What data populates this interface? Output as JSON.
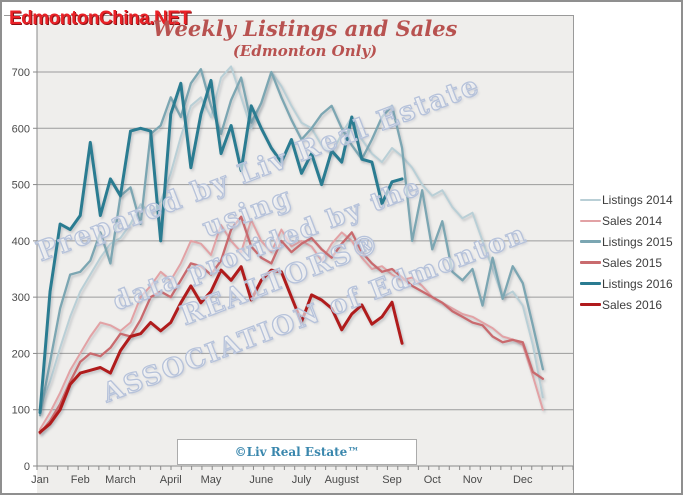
{
  "logo": {
    "text": "EdmontonChina.NET",
    "color": "#ea2127"
  },
  "title": {
    "text": "Weekly Listings and Sales",
    "subtitle": "(Edmonton Only)",
    "color": "#b85250"
  },
  "watermark": {
    "lines": [
      "Prepared by Liv Real Estate",
      "using",
      "data provided by the",
      "REALTORS®",
      "ASSOCIATION of Edmonton"
    ],
    "outline_color": "#b6c2da"
  },
  "copyright_box": {
    "text": "©Liv Real Estate™",
    "color": "#3a87ad"
  },
  "legend": {
    "position": "right",
    "entries": [
      "Listings 2014",
      "Sales 2014",
      "Listings 2015",
      "Sales 2015",
      "Listings 2016",
      "Sales 2016"
    ]
  },
  "axes": {
    "y_tick_labels": [
      "0",
      "100",
      "200",
      "300",
      "400",
      "500",
      "600",
      "700"
    ],
    "x_tick_labels": [
      "Jan",
      "Feb",
      "March",
      "April",
      "May",
      "June",
      "July",
      "August",
      "Sep",
      "Oct",
      "Nov",
      "Dec"
    ]
  },
  "chart_data": {
    "type": "line",
    "title": "Weekly Listings and Sales",
    "subtitle": "(Edmonton Only)",
    "xlabel": "",
    "ylabel": "",
    "x_unit": "week-of-year",
    "weeks_per_year": 52,
    "month_labels": [
      "Jan",
      "Feb",
      "March",
      "April",
      "May",
      "June",
      "July",
      "August",
      "Sep",
      "Oct",
      "Nov",
      "Dec"
    ],
    "month_start_weeks": [
      0,
      4,
      8,
      13,
      17,
      22,
      26,
      30,
      35,
      39,
      43,
      48
    ],
    "ylim": [
      0,
      700
    ],
    "y_tick_step": 100,
    "grid": true,
    "legend_position": "right",
    "series": [
      {
        "name": "Listings 2014",
        "color": "#b9cfd6",
        "line_width": 2,
        "values": [
          105,
          150,
          210,
          265,
          310,
          340,
          370,
          395,
          405,
          430,
          465,
          450,
          470,
          520,
          585,
          640,
          655,
          620,
          690,
          710,
          655,
          600,
          645,
          700,
          675,
          640,
          610,
          600,
          570,
          555,
          590,
          620,
          580,
          555,
          540,
          565,
          550,
          530,
          500,
          480,
          490,
          460,
          440,
          450,
          400,
          350,
          300,
          310,
          285,
          215,
          122
        ]
      },
      {
        "name": "Sales 2014",
        "color": "#e2a2a5",
        "line_width": 2,
        "values": [
          65,
          95,
          130,
          170,
          200,
          230,
          255,
          250,
          240,
          255,
          300,
          320,
          345,
          330,
          360,
          400,
          395,
          375,
          428,
          400,
          380,
          437,
          400,
          380,
          420,
          390,
          400,
          390,
          365,
          395,
          415,
          400,
          370,
          350,
          355,
          340,
          330,
          335,
          320,
          300,
          290,
          280,
          270,
          265,
          255,
          245,
          230,
          225,
          215,
          160,
          100
        ]
      },
      {
        "name": "Listings 2015",
        "color": "#7ba6b2",
        "line_width": 2.3,
        "values": [
          90,
          185,
          280,
          340,
          345,
          365,
          415,
          360,
          480,
          495,
          430,
          590,
          605,
          655,
          620,
          680,
          705,
          640,
          590,
          650,
          690,
          610,
          645,
          700,
          655,
          615,
          580,
          600,
          625,
          640,
          600,
          570,
          545,
          580,
          620,
          640,
          565,
          400,
          490,
          385,
          435,
          345,
          330,
          350,
          285,
          370,
          297,
          355,
          325,
          250,
          172
        ]
      },
      {
        "name": "Sales 2015",
        "color": "#c96b6e",
        "line_width": 2.3,
        "values": [
          58,
          80,
          110,
          150,
          185,
          200,
          195,
          210,
          235,
          230,
          260,
          300,
          310,
          300,
          330,
          360,
          355,
          340,
          365,
          420,
          443,
          390,
          370,
          360,
          400,
          380,
          395,
          405,
          385,
          370,
          395,
          415,
          380,
          360,
          345,
          350,
          335,
          320,
          310,
          300,
          290,
          275,
          265,
          255,
          250,
          230,
          220,
          224,
          220,
          167,
          155
        ]
      },
      {
        "name": "Listings 2016",
        "color": "#2a7b91",
        "line_width": 3,
        "values": [
          95,
          310,
          430,
          420,
          445,
          575,
          445,
          510,
          480,
          595,
          600,
          595,
          400,
          625,
          680,
          530,
          625,
          685,
          555,
          605,
          525,
          640,
          600,
          565,
          540,
          580,
          520,
          555,
          500,
          560,
          540,
          620,
          545,
          540,
          466,
          505,
          510
        ]
      },
      {
        "name": "Sales 2016",
        "color": "#b01a1c",
        "line_width": 3,
        "values": [
          60,
          75,
          100,
          145,
          165,
          170,
          175,
          165,
          205,
          230,
          235,
          255,
          240,
          255,
          290,
          320,
          290,
          310,
          348,
          330,
          354,
          295,
          330,
          348,
          345,
          300,
          256,
          304,
          295,
          280,
          242,
          270,
          286,
          252,
          265,
          291,
          218
        ]
      }
    ]
  }
}
